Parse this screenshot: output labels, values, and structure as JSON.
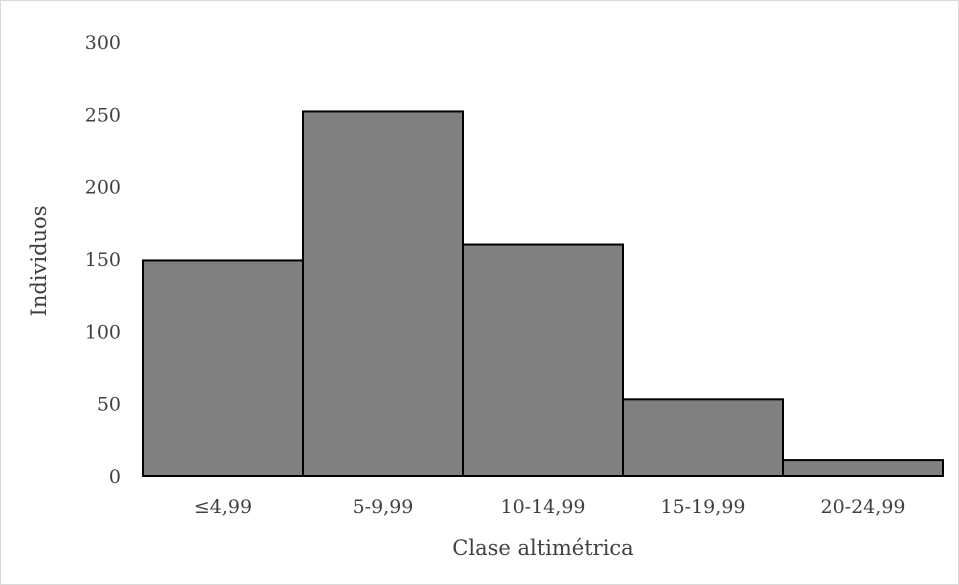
{
  "chart_data": {
    "type": "bar",
    "title": "",
    "xlabel": "Clase altimétrica",
    "ylabel": "Individuos",
    "categories": [
      "≤4,99",
      "5-9,99",
      "10-14,99",
      "15-19,99",
      "20-24,99"
    ],
    "values": [
      149,
      252,
      160,
      53,
      11
    ],
    "ylim": [
      0,
      300
    ],
    "yticks": [
      0,
      50,
      100,
      150,
      200,
      250,
      300
    ],
    "grid": false,
    "legend": "none",
    "colors": {
      "bar_fill": "#808080",
      "bar_stroke": "#000000",
      "axis_line": "#000000",
      "text": "#404040"
    }
  }
}
